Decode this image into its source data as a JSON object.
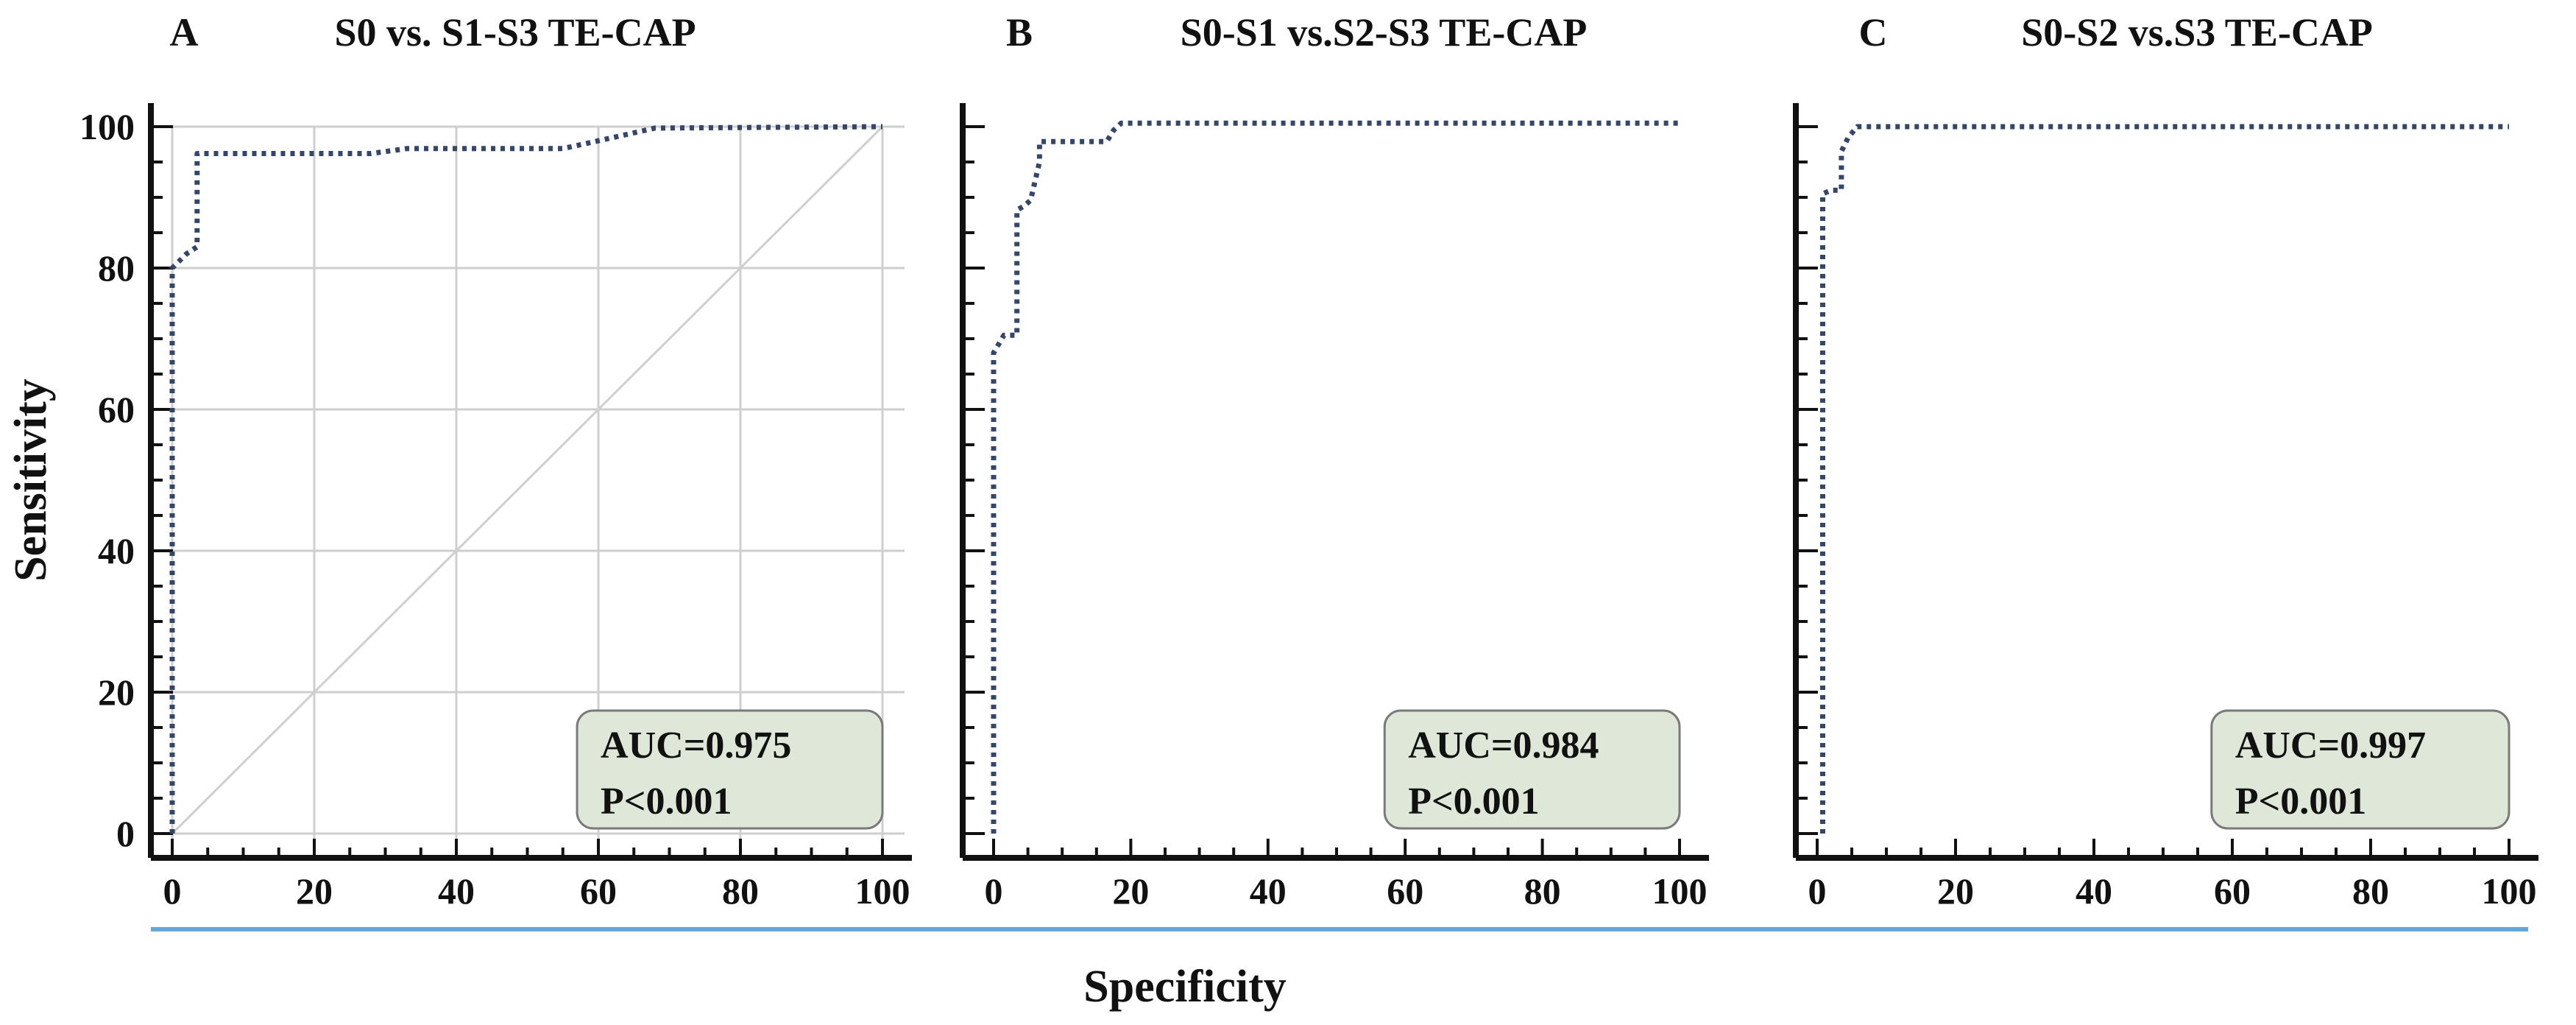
{
  "chart_data": [
    {
      "type": "line",
      "panel_label": "A",
      "title": "S0 vs. S1-S3 TE-CAP",
      "ylabel": "Sensitivity",
      "xlim": [
        0,
        100
      ],
      "ylim": [
        0,
        100
      ],
      "xticks": [
        "0",
        "20",
        "40",
        "60",
        "80",
        "100"
      ],
      "yticks": [
        "0",
        "20",
        "40",
        "60",
        "80",
        "100"
      ],
      "grid": true,
      "reference_diagonal": true,
      "series": [
        {
          "x": [
            0,
            0,
            2,
            3.5,
            3.5,
            28,
            33,
            55,
            60,
            68,
            100
          ],
          "y": [
            0,
            80,
            82,
            83,
            96.2,
            96.2,
            96.9,
            96.9,
            98,
            99.8,
            100
          ]
        }
      ],
      "annotation": {
        "auc": "AUC=0.975",
        "p": "P<0.001"
      }
    },
    {
      "type": "line",
      "panel_label": "B",
      "title": "S0-S1 vs.S2-S3 TE-CAP",
      "xlim": [
        0,
        100
      ],
      "ylim": [
        0,
        100
      ],
      "xticks": [
        "0",
        "20",
        "40",
        "60",
        "80",
        "100"
      ],
      "grid": false,
      "reference_diagonal": false,
      "series": [
        {
          "x": [
            0,
            0,
            1.5,
            3.4,
            3.4,
            4.5,
            5.4,
            6.7,
            6.7,
            16.5,
            17.5,
            18.6,
            100
          ],
          "y": [
            0,
            68,
            70.5,
            70.5,
            88.2,
            88.8,
            89.6,
            95,
            97.9,
            97.9,
            99.5,
            100.5,
            100.5
          ]
        }
      ],
      "annotation": {
        "auc": "AUC=0.984",
        "p": "P<0.001"
      }
    },
    {
      "type": "line",
      "panel_label": "C",
      "title": "S0-S2 vs.S3 TE-CAP",
      "xlim": [
        0,
        100
      ],
      "ylim": [
        0,
        100
      ],
      "xticks": [
        "0",
        "20",
        "40",
        "60",
        "80",
        "100"
      ],
      "grid": false,
      "reference_diagonal": false,
      "series": [
        {
          "x": [
            0.8,
            0.8,
            2,
            3.5,
            3.5,
            4.5,
            5.8,
            100
          ],
          "y": [
            0,
            90.5,
            91,
            91,
            96.5,
            98.5,
            100,
            100
          ]
        }
      ],
      "annotation": {
        "auc": "AUC=0.997",
        "p": "P<0.001"
      }
    }
  ],
  "shared_xlabel": "Specificity",
  "colors": {
    "curve": "#34466a",
    "grid": "#cfcfcf",
    "annotation_fill": "#dfe8d8",
    "annotation_border": "#7a7a7a",
    "baseline": "#6aa6d4"
  }
}
